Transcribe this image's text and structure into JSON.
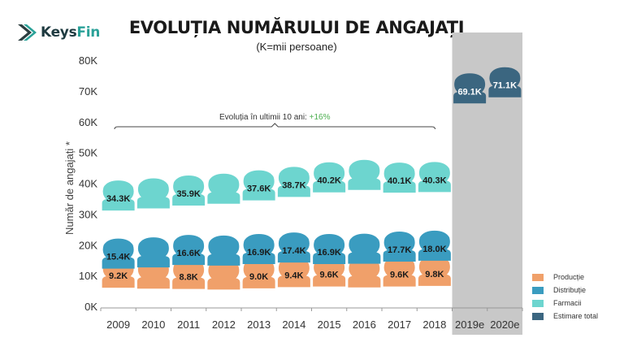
{
  "header": {
    "logo_text_keys": "Keys",
    "logo_text_fin": "Fin",
    "title": "EVOLUȚIA NUMĂRULUI DE ANGAJAȚI",
    "subtitle": "(K=mii persoane)"
  },
  "chart_data": {
    "type": "pictogram-bar",
    "title": "EVOLUȚIA NUMĂRULUI DE ANGAJAȚI",
    "subtitle": "(K=mii persoane)",
    "ylabel": "Număr de angajați *",
    "ylim": [
      0,
      80
    ],
    "yticks": [
      "0K",
      "10K",
      "20K",
      "30K",
      "40K",
      "50K",
      "60K",
      "70K",
      "80K"
    ],
    "categories": [
      "2009",
      "2010",
      "2011",
      "2012",
      "2013",
      "2014",
      "2015",
      "2016",
      "2017",
      "2018",
      "2019e",
      "2020e"
    ],
    "series": [
      {
        "name": "Producție",
        "color": "#f0a06a",
        "values": [
          9.2,
          8.9,
          8.8,
          8.6,
          9.0,
          9.4,
          9.6,
          9.3,
          9.6,
          9.8,
          null,
          null
        ],
        "labels": [
          "9.2K",
          "",
          "8.8K",
          "",
          "9.0K",
          "9.4K",
          "9.6K",
          "",
          "9.6K",
          "9.8K",
          "",
          ""
        ]
      },
      {
        "name": "Distribuție",
        "color": "#3a9cc0",
        "values": [
          15.4,
          15.8,
          16.6,
          16.4,
          16.9,
          17.4,
          16.9,
          17.0,
          17.7,
          18.0,
          null,
          null
        ],
        "labels": [
          "15.4K",
          "",
          "16.6K",
          "",
          "16.9K",
          "17.4K",
          "16.9K",
          "",
          "17.7K",
          "18.0K",
          "",
          ""
        ]
      },
      {
        "name": "Farmacii",
        "color": "#6dd5cf",
        "values": [
          34.3,
          35.0,
          35.9,
          36.5,
          37.6,
          38.7,
          40.2,
          41.0,
          40.1,
          40.3,
          null,
          null
        ],
        "labels": [
          "34.3K",
          "",
          "35.9K",
          "",
          "37.6K",
          "38.7K",
          "40.2K",
          "",
          "40.1K",
          "40.3K",
          "",
          ""
        ]
      },
      {
        "name": "Estimare total",
        "color": "#3b6680",
        "values": [
          null,
          null,
          null,
          null,
          null,
          null,
          null,
          null,
          null,
          null,
          69.1,
          71.1
        ],
        "labels": [
          "",
          "",
          "",
          "",
          "",
          "",
          "",
          "",
          "",
          "",
          "69.1K",
          "71.1K"
        ]
      }
    ],
    "annotation": {
      "text": "Evoluția în ultimii 10 ani:",
      "highlight": "+16%",
      "from": "2009",
      "to": "2018"
    },
    "shaded_categories": [
      "2019e",
      "2020e"
    ],
    "legend_position": "bottom-right"
  },
  "colors": {
    "estimate_band": "#c8c8c8",
    "annotation_highlight": "#4caf50",
    "axis": "#999999"
  }
}
